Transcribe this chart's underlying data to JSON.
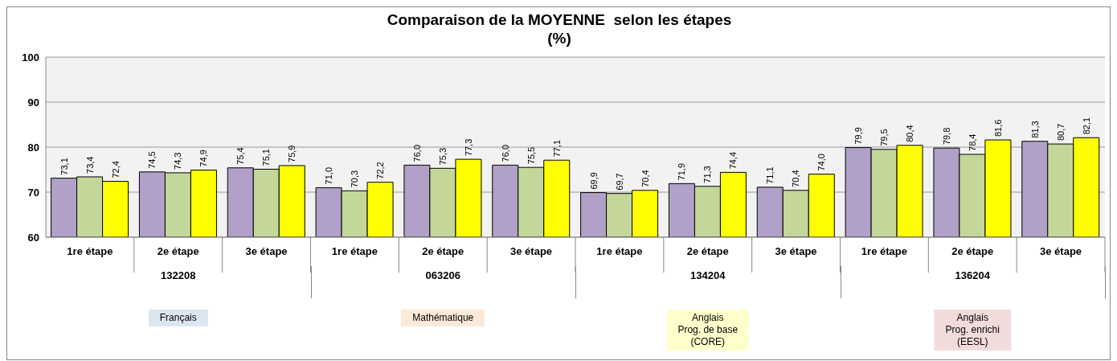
{
  "chart_data": {
    "type": "bar",
    "title": "Comparaison de la MOYENNE  selon les étapes",
    "subtitle": "(%)",
    "categories": [
      "1re étape",
      "2e étape",
      "3e étape",
      "1re étape",
      "2e étape",
      "3e étape",
      "1re étape",
      "2e étape",
      "3e étape",
      "1re étape",
      "2e étape",
      "3e étape"
    ],
    "series": [
      {
        "color": "#b1a0c7",
        "values": [
          73.1,
          74.5,
          75.4,
          71.0,
          76.0,
          76.0,
          69.9,
          71.9,
          71.1,
          79.9,
          79.8,
          81.3
        ],
        "value_labels": [
          "73,1",
          "74,5",
          "75,4",
          "71,0",
          "76,0",
          "76,0",
          "69,9",
          "71,9",
          "71,1",
          "79,9",
          "79,8",
          "81,3"
        ]
      },
      {
        "color": "#c4d79b",
        "values": [
          73.4,
          74.3,
          75.1,
          70.3,
          75.3,
          75.5,
          69.7,
          71.3,
          70.4,
          79.5,
          78.4,
          80.7
        ],
        "value_labels": [
          "73,4",
          "74,3",
          "75,1",
          "70,3",
          "75,3",
          "75,5",
          "69,7",
          "71,3",
          "70,4",
          "79,5",
          "78,4",
          "80,7"
        ]
      },
      {
        "color": "#ffff00",
        "values": [
          72.4,
          74.9,
          75.9,
          72.2,
          77.3,
          77.1,
          70.4,
          74.4,
          74.0,
          80.4,
          81.6,
          82.1
        ],
        "value_labels": [
          "72,4",
          "74,9",
          "75,9",
          "72,2",
          "77,3",
          "77,1",
          "70,4",
          "74,4",
          "74,0",
          "80,4",
          "81,6",
          "82,1"
        ]
      }
    ],
    "ylim": [
      60,
      100
    ],
    "yticks": [
      60,
      70,
      80,
      90,
      100
    ],
    "grid": "y",
    "annotations": [
      "132208",
      "063206",
      "134204",
      "136204",
      "Français",
      "Mathématique",
      "Anglais\nProg. de base\n(CORE)",
      "Anglais\nProg. enrichi\n(EESL)"
    ]
  }
}
